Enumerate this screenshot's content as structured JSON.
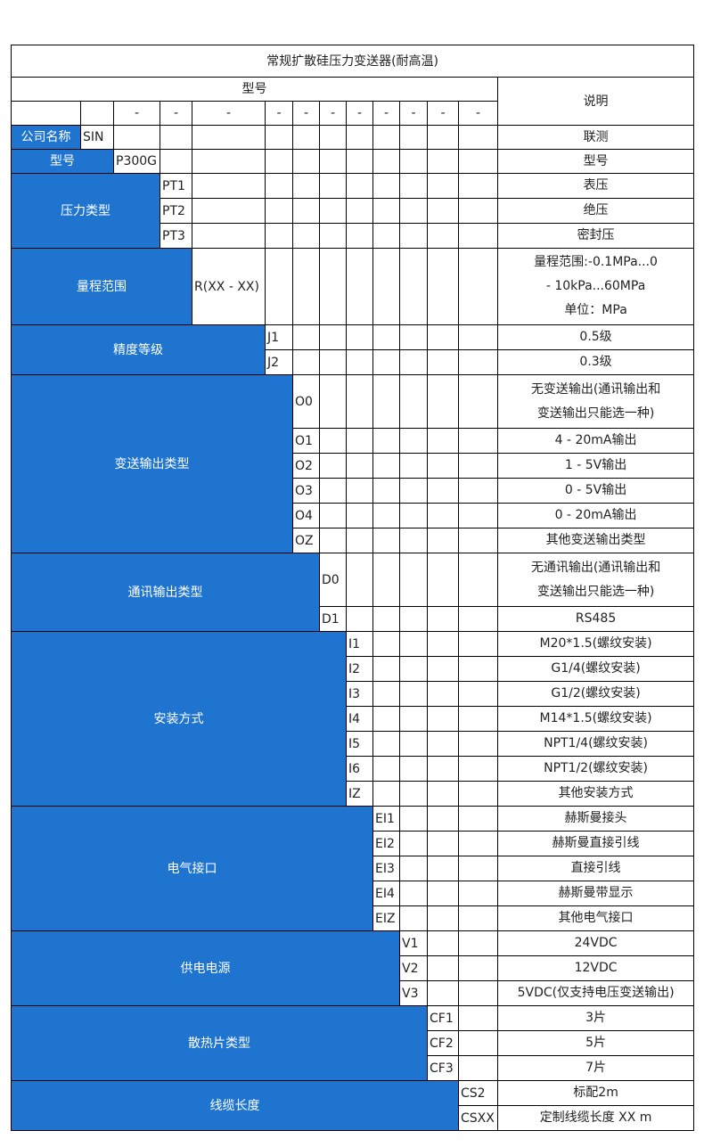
{
  "title": "常规扩散硅压力变送器(耐高温)",
  "header": {
    "model_label": "型号",
    "desc_label": "说明",
    "dash": "-"
  },
  "company": {
    "label": "公司名称",
    "code": "SIN",
    "desc": "联测"
  },
  "model": {
    "label": "型号",
    "code": "P300G",
    "desc": "型号"
  },
  "groups": [
    {
      "label": "压力类型",
      "items": [
        {
          "code": "PT1",
          "desc": "表压"
        },
        {
          "code": "PT2",
          "desc": "绝压"
        },
        {
          "code": "PT3",
          "desc": "密封压"
        }
      ]
    },
    {
      "label": "量程范围",
      "items": [
        {
          "code": "R(XX - XX)",
          "desc": "量程范围:-0.1MPa...0 - 10kPa...60MPa 单位：MPa",
          "lines": [
            "量程范围:-0.1MPa...0",
            "- 10kPa...60MPa",
            "单位：MPa"
          ]
        }
      ]
    },
    {
      "label": "精度等级",
      "items": [
        {
          "code": "J1",
          "desc": "0.5级"
        },
        {
          "code": "J2",
          "desc": "0.3级"
        }
      ]
    },
    {
      "label": "变送输出类型",
      "items": [
        {
          "code": "O0",
          "lines": [
            "无变送输出(通讯输出和",
            "变送输出只能选一种)"
          ]
        },
        {
          "code": "O1",
          "desc": "4 - 20mA输出"
        },
        {
          "code": "O2",
          "desc": "1 - 5V输出"
        },
        {
          "code": "O3",
          "desc": "0 - 5V输出"
        },
        {
          "code": "O4",
          "desc": "0 - 20mA输出"
        },
        {
          "code": "OZ",
          "desc": "其他变送输出类型"
        }
      ]
    },
    {
      "label": "通讯输出类型",
      "items": [
        {
          "code": "D0",
          "lines": [
            "无通讯输出(通讯输出和",
            "变送输出只能选一种)"
          ]
        },
        {
          "code": "D1",
          "desc": "RS485"
        }
      ]
    },
    {
      "label": "安装方式",
      "items": [
        {
          "code": "I1",
          "desc": "M20*1.5(螺纹安装)"
        },
        {
          "code": "I2",
          "desc": "G1/4(螺纹安装)"
        },
        {
          "code": "I3",
          "desc": "G1/2(螺纹安装)"
        },
        {
          "code": "I4",
          "desc": "M14*1.5(螺纹安装)"
        },
        {
          "code": "I5",
          "desc": "NPT1/4(螺纹安装)"
        },
        {
          "code": "I6",
          "desc": "NPT1/2(螺纹安装)"
        },
        {
          "code": "IZ",
          "desc": "其他安装方式"
        }
      ]
    },
    {
      "label": "电气接口",
      "items": [
        {
          "code": "EI1",
          "desc": "赫斯曼接头"
        },
        {
          "code": "EI2",
          "desc": "赫斯曼直接引线"
        },
        {
          "code": "EI3",
          "desc": "直接引线"
        },
        {
          "code": "EI4",
          "desc": "赫斯曼带显示"
        },
        {
          "code": "EIZ",
          "desc": "其他电气接口"
        }
      ]
    },
    {
      "label": "供电电源",
      "items": [
        {
          "code": "V1",
          "desc": "24VDC"
        },
        {
          "code": "V2",
          "desc": "12VDC"
        },
        {
          "code": "V3",
          "desc": "5VDC(仅支持电压变送输出)"
        }
      ]
    },
    {
      "label": "散热片类型",
      "items": [
        {
          "code": "CF1",
          "desc": "3片"
        },
        {
          "code": "CF2",
          "desc": "5片"
        },
        {
          "code": "CF3",
          "desc": "7片"
        }
      ]
    },
    {
      "label": "线缆长度",
      "items": [
        {
          "code": "CS2",
          "desc": "标配2m"
        },
        {
          "code": "CSXX",
          "desc": "定制线缆长度 XX m"
        }
      ]
    }
  ],
  "colors": {
    "header_fill": "#1f74cf",
    "header_text": "#ffffff",
    "border": "#000000"
  }
}
